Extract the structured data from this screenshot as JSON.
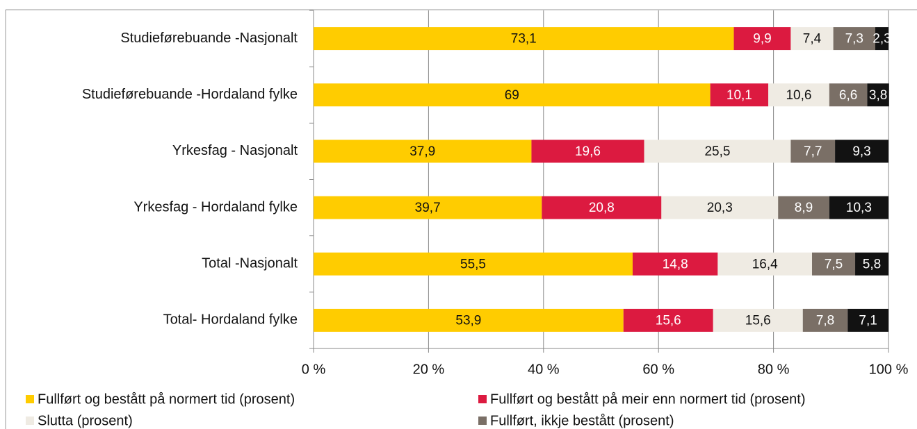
{
  "chart_data": {
    "type": "stacked-barh",
    "categories": [
      "Studieførebuande -Nasjonalt",
      "Studieførebuande -Hordaland fylke",
      "Yrkesfag - Nasjonalt",
      "Yrkesfag - Hordaland fylke",
      "Total -Nasjonalt",
      "Total- Hordaland fylke"
    ],
    "series": [
      {
        "name": "Fullført og bestått på normert tid (prosent)",
        "color": "#ffcc00",
        "values": [
          73.1,
          69,
          37.9,
          39.7,
          55.5,
          53.9
        ],
        "value_labels": [
          "73,1",
          "69",
          "37,9",
          "39,7",
          "55,5",
          "53,9"
        ]
      },
      {
        "name": "Fullført og bestått på meir enn normert tid (prosent)",
        "color": "#dc1a40",
        "values": [
          9.9,
          10.1,
          19.6,
          20.8,
          14.8,
          15.6
        ],
        "value_labels": [
          "9,9",
          "10,1",
          "19,6",
          "20,8",
          "14,8",
          "15,6"
        ]
      },
      {
        "name": "Slutta (prosent)",
        "color": "#efebe3",
        "values": [
          7.4,
          10.6,
          25.5,
          20.3,
          16.4,
          15.6
        ],
        "value_labels": [
          "7,4",
          "10,6",
          "25,5",
          "20,3",
          "16,4",
          "15,6"
        ]
      },
      {
        "name": "Fullført, ikkje bestått (prosent)",
        "color": "#7a6f66",
        "values": [
          7.3,
          6.6,
          7.7,
          8.9,
          7.5,
          7.8
        ],
        "value_labels": [
          "7,3",
          "6,6",
          "7,7",
          "8,9",
          "7,5",
          "7,8"
        ]
      },
      {
        "color": "#121212",
        "values": [
          2.3,
          3.8,
          9.3,
          10.3,
          5.8,
          7.1
        ],
        "value_labels": [
          "2,3",
          "3,8",
          "9,3",
          "10,3",
          "5,8",
          "7,1"
        ]
      }
    ],
    "xlim": [
      0,
      100
    ],
    "xticks": [
      {
        "value": 0,
        "label": "0 %"
      },
      {
        "value": 20,
        "label": "20 %"
      },
      {
        "value": 40,
        "label": "40 %"
      },
      {
        "value": 60,
        "label": "60 %"
      },
      {
        "value": 80,
        "label": "80 %"
      },
      {
        "value": 100,
        "label": "100 %"
      }
    ],
    "grid": true
  }
}
